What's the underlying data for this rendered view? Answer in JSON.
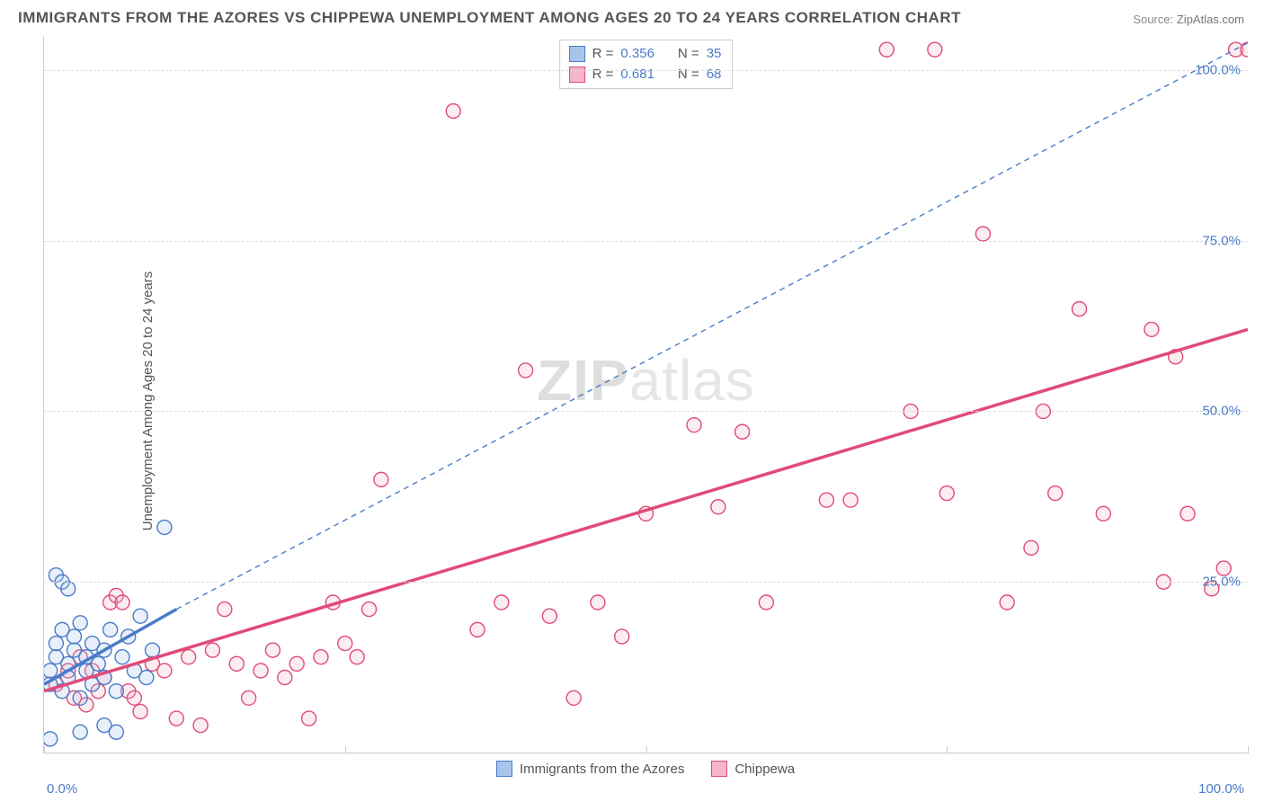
{
  "title": "IMMIGRANTS FROM THE AZORES VS CHIPPEWA UNEMPLOYMENT AMONG AGES 20 TO 24 YEARS CORRELATION CHART",
  "source_label": "Source:",
  "source_value": "ZipAtlas.com",
  "y_axis_label": "Unemployment Among Ages 20 to 24 years",
  "watermark_bold": "ZIP",
  "watermark_light": "atlas",
  "chart": {
    "type": "scatter",
    "xlim": [
      0,
      100
    ],
    "ylim": [
      0,
      105
    ],
    "x_tick_positions": [
      0,
      25,
      50,
      75,
      100
    ],
    "x_tick_labels": [
      "0.0%",
      "",
      "",
      "",
      "100.0%"
    ],
    "y_grid": [
      25,
      50,
      75,
      100
    ],
    "y_tick_labels": [
      "25.0%",
      "50.0%",
      "75.0%",
      "100.0%"
    ],
    "background_color": "#ffffff",
    "grid_color": "#dddddd",
    "axis_color": "#cccccc",
    "tick_label_color": "#4a7bc8",
    "marker_radius": 8,
    "marker_stroke_width": 1.4,
    "marker_fill_opacity": 0.25
  },
  "series": [
    {
      "name": "Immigrants from the Azores",
      "color_stroke": "#4a7bc8",
      "color_fill": "#a9c4ea",
      "R": "0.356",
      "N": "35",
      "trend_solid": {
        "x1": 0,
        "y1": 10,
        "x2": 11,
        "y2": 21,
        "width": 3.5
      },
      "trend_dashed": {
        "x1": 11,
        "y1": 21,
        "x2": 100,
        "y2": 104,
        "width": 1.4,
        "dash": "6,5"
      },
      "points": [
        [
          0.5,
          10
        ],
        [
          0.5,
          12
        ],
        [
          1,
          14
        ],
        [
          1,
          16
        ],
        [
          1.5,
          18
        ],
        [
          1.5,
          9
        ],
        [
          2,
          11
        ],
        [
          2,
          13
        ],
        [
          2.5,
          15
        ],
        [
          2.5,
          17
        ],
        [
          3,
          19
        ],
        [
          3,
          8
        ],
        [
          3.5,
          12
        ],
        [
          3.5,
          14
        ],
        [
          4,
          10
        ],
        [
          4,
          16
        ],
        [
          4.5,
          13
        ],
        [
          5,
          11
        ],
        [
          5,
          15
        ],
        [
          5.5,
          18
        ],
        [
          6,
          9
        ],
        [
          6.5,
          14
        ],
        [
          7,
          17
        ],
        [
          7.5,
          12
        ],
        [
          8,
          20
        ],
        [
          8.5,
          11
        ],
        [
          9,
          15
        ],
        [
          1,
          26
        ],
        [
          1.5,
          25
        ],
        [
          2,
          24
        ],
        [
          0.5,
          2
        ],
        [
          3,
          3
        ],
        [
          5,
          4
        ],
        [
          6,
          3
        ],
        [
          10,
          33
        ]
      ]
    },
    {
      "name": "Chippewa",
      "color_stroke": "#e04b78",
      "color_fill": "#f4b6c8",
      "R": "0.681",
      "N": "68",
      "trend_solid": {
        "x1": 0,
        "y1": 9,
        "x2": 100,
        "y2": 62,
        "width": 3.5
      },
      "points": [
        [
          1,
          10
        ],
        [
          2,
          12
        ],
        [
          2.5,
          8
        ],
        [
          3,
          14
        ],
        [
          3.5,
          7
        ],
        [
          4,
          12
        ],
        [
          4.5,
          9
        ],
        [
          5,
          11
        ],
        [
          5.5,
          22
        ],
        [
          6,
          23
        ],
        [
          6.5,
          22
        ],
        [
          7,
          9
        ],
        [
          7.5,
          8
        ],
        [
          8,
          6
        ],
        [
          9,
          13
        ],
        [
          10,
          12
        ],
        [
          11,
          5
        ],
        [
          12,
          14
        ],
        [
          13,
          4
        ],
        [
          14,
          15
        ],
        [
          15,
          21
        ],
        [
          16,
          13
        ],
        [
          17,
          8
        ],
        [
          18,
          12
        ],
        [
          19,
          15
        ],
        [
          20,
          11
        ],
        [
          21,
          13
        ],
        [
          22,
          5
        ],
        [
          23,
          14
        ],
        [
          24,
          22
        ],
        [
          25,
          16
        ],
        [
          26,
          14
        ],
        [
          27,
          21
        ],
        [
          28,
          40
        ],
        [
          34,
          94
        ],
        [
          36,
          18
        ],
        [
          38,
          22
        ],
        [
          40,
          56
        ],
        [
          42,
          20
        ],
        [
          44,
          8
        ],
        [
          46,
          22
        ],
        [
          48,
          17
        ],
        [
          50,
          35
        ],
        [
          54,
          48
        ],
        [
          56,
          36
        ],
        [
          58,
          47
        ],
        [
          60,
          22
        ],
        [
          65,
          37
        ],
        [
          67,
          37
        ],
        [
          70,
          103
        ],
        [
          72,
          50
        ],
        [
          74,
          103
        ],
        [
          75,
          38
        ],
        [
          78,
          76
        ],
        [
          80,
          22
        ],
        [
          82,
          30
        ],
        [
          83,
          50
        ],
        [
          84,
          38
        ],
        [
          86,
          65
        ],
        [
          88,
          35
        ],
        [
          92,
          62
        ],
        [
          93,
          25
        ],
        [
          94,
          58
        ],
        [
          95,
          35
        ],
        [
          97,
          24
        ],
        [
          98,
          27
        ],
        [
          99,
          103
        ],
        [
          100,
          103
        ]
      ]
    }
  ],
  "legend_series": [
    {
      "label": "Immigrants from the Azores",
      "fill": "#a9c4ea",
      "stroke": "#4a7bc8"
    },
    {
      "label": "Chippewa",
      "fill": "#f4b6c8",
      "stroke": "#e04b78"
    }
  ],
  "r_legend": {
    "R_label": "R =",
    "N_label": "N ="
  }
}
